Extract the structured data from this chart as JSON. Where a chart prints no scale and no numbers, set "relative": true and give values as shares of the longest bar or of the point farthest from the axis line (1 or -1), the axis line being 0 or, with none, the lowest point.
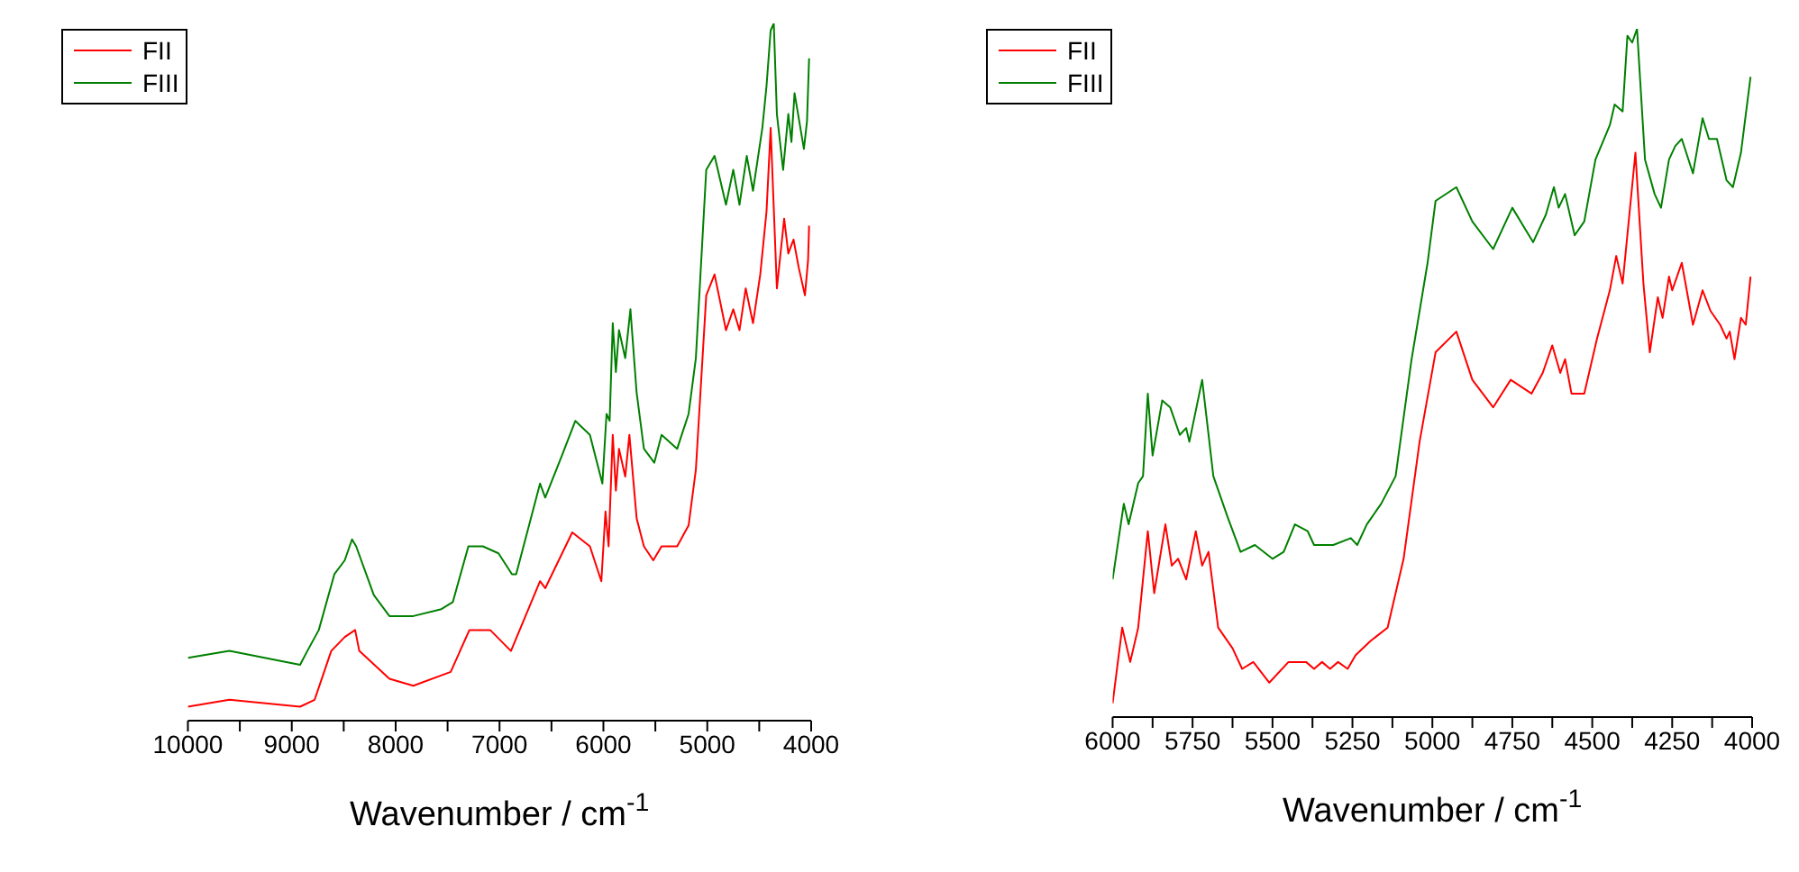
{
  "chart_data": [
    {
      "type": "line",
      "relative": true,
      "xlabel": "Wavenumber / cm$^{-1}$",
      "xlim": [
        10000,
        4000
      ],
      "xticks": [
        10000,
        {
          "value": 9500,
          "label": null
        },
        9000,
        {
          "value": 8500,
          "label": null
        },
        8000,
        {
          "value": 7500,
          "label": null
        },
        7000,
        {
          "value": 6500,
          "label": null
        },
        6000,
        {
          "value": 5500,
          "label": null
        },
        5000,
        {
          "value": 4500,
          "label": null
        },
        4000
      ],
      "legend": "top left",
      "grid": false,
      "marker": "none",
      "line_style": "solid",
      "series": [
        {
          "name": "FII",
          "color": "#ff0000",
          "x": [
            10000,
            9600,
            8920,
            8780,
            8620,
            8490,
            8390,
            8350,
            8060,
            7830,
            7470,
            7290,
            7090,
            6890,
            6610,
            6560,
            6300,
            6130,
            6020,
            5980,
            5950,
            5910,
            5880,
            5850,
            5790,
            5750,
            5680,
            5610,
            5520,
            5440,
            5290,
            5180,
            5110,
            5010,
            4930,
            4820,
            4750,
            4690,
            4630,
            4560,
            4490,
            4430,
            4390,
            4330,
            4260,
            4220,
            4170,
            4120,
            4060,
            4030,
            4020
          ],
          "values": [
            0.02,
            0.03,
            0.02,
            0.03,
            0.1,
            0.12,
            0.13,
            0.1,
            0.06,
            0.05,
            0.07,
            0.13,
            0.13,
            0.1,
            0.2,
            0.19,
            0.27,
            0.25,
            0.2,
            0.3,
            0.25,
            0.41,
            0.33,
            0.39,
            0.35,
            0.41,
            0.29,
            0.25,
            0.23,
            0.25,
            0.25,
            0.28,
            0.36,
            0.61,
            0.64,
            0.56,
            0.59,
            0.56,
            0.62,
            0.57,
            0.64,
            0.73,
            0.85,
            0.62,
            0.72,
            0.67,
            0.69,
            0.65,
            0.61,
            0.66,
            0.71
          ]
        },
        {
          "name": "FIII",
          "color": "#008000",
          "x": [
            10000,
            9600,
            8920,
            8850,
            8740,
            8590,
            8490,
            8420,
            8380,
            8210,
            8060,
            7830,
            7560,
            7450,
            7300,
            7160,
            7010,
            6880,
            6840,
            6610,
            6560,
            6400,
            6270,
            6130,
            6010,
            5970,
            5940,
            5910,
            5880,
            5850,
            5790,
            5740,
            5680,
            5610,
            5510,
            5440,
            5290,
            5180,
            5110,
            5010,
            4930,
            4820,
            4750,
            4690,
            4620,
            4560,
            4470,
            4430,
            4390,
            4360,
            4330,
            4270,
            4220,
            4190,
            4160,
            4070,
            4040,
            4020
          ],
          "values": [
            0.09,
            0.1,
            0.08,
            0.1,
            0.13,
            0.21,
            0.23,
            0.26,
            0.25,
            0.18,
            0.15,
            0.15,
            0.16,
            0.17,
            0.25,
            0.25,
            0.24,
            0.21,
            0.21,
            0.34,
            0.32,
            0.38,
            0.43,
            0.41,
            0.34,
            0.44,
            0.43,
            0.57,
            0.5,
            0.56,
            0.52,
            0.59,
            0.47,
            0.39,
            0.37,
            0.41,
            0.39,
            0.44,
            0.52,
            0.79,
            0.81,
            0.74,
            0.79,
            0.74,
            0.81,
            0.76,
            0.85,
            0.91,
            0.99,
            1,
            0.87,
            0.79,
            0.87,
            0.83,
            0.9,
            0.82,
            0.86,
            0.95
          ]
        }
      ]
    },
    {
      "type": "line",
      "relative": true,
      "xlabel": "Wavenumber / cm$^{-1}$",
      "xlim": [
        6000,
        4000
      ],
      "xticks": [
        6000,
        {
          "value": 5875,
          "label": null
        },
        5750,
        {
          "value": 5625,
          "label": null
        },
        5500,
        {
          "value": 5375,
          "label": null
        },
        5250,
        {
          "value": 5125,
          "label": null
        },
        5000,
        {
          "value": 4875,
          "label": null
        },
        4750,
        {
          "value": 4625,
          "label": null
        },
        4500,
        {
          "value": 4375,
          "label": null
        },
        4250,
        {
          "value": 4125,
          "label": null
        },
        4000
      ],
      "legend": "top left",
      "grid": false,
      "marker": "none",
      "line_style": "solid",
      "series": [
        {
          "name": "FII",
          "color": "#ff0000",
          "x": [
            6000,
            5970,
            5945,
            5920,
            5890,
            5870,
            5835,
            5815,
            5795,
            5770,
            5740,
            5720,
            5700,
            5670,
            5625,
            5595,
            5560,
            5510,
            5450,
            5395,
            5370,
            5345,
            5320,
            5295,
            5265,
            5240,
            5195,
            5140,
            5090,
            5040,
            4990,
            4925,
            4875,
            4810,
            4755,
            4690,
            4655,
            4625,
            4600,
            4585,
            4565,
            4525,
            4485,
            4445,
            4425,
            4405,
            4365,
            4340,
            4320,
            4295,
            4280,
            4260,
            4250,
            4220,
            4185,
            4155,
            4130,
            4100,
            4080,
            4070,
            4055,
            4035,
            4020,
            4005
          ],
          "values": [
            0.02,
            0.13,
            0.08,
            0.13,
            0.27,
            0.18,
            0.28,
            0.22,
            0.23,
            0.2,
            0.27,
            0.22,
            0.24,
            0.13,
            0.1,
            0.07,
            0.08,
            0.05,
            0.08,
            0.08,
            0.07,
            0.08,
            0.07,
            0.08,
            0.07,
            0.09,
            0.11,
            0.13,
            0.23,
            0.4,
            0.53,
            0.56,
            0.49,
            0.45,
            0.49,
            0.47,
            0.5,
            0.54,
            0.5,
            0.52,
            0.47,
            0.47,
            0.55,
            0.62,
            0.67,
            0.63,
            0.82,
            0.63,
            0.53,
            0.61,
            0.58,
            0.64,
            0.62,
            0.66,
            0.57,
            0.62,
            0.59,
            0.57,
            0.55,
            0.56,
            0.52,
            0.58,
            0.57,
            0.64
          ]
        },
        {
          "name": "FIII",
          "color": "#008000",
          "x": [
            6000,
            5965,
            5950,
            5920,
            5905,
            5890,
            5875,
            5845,
            5820,
            5790,
            5770,
            5760,
            5720,
            5685,
            5640,
            5600,
            5555,
            5500,
            5465,
            5430,
            5390,
            5370,
            5310,
            5255,
            5235,
            5205,
            5160,
            5115,
            5065,
            5015,
            4990,
            4925,
            4875,
            4810,
            4750,
            4685,
            4645,
            4620,
            4605,
            4585,
            4555,
            4525,
            4490,
            4445,
            4430,
            4405,
            4390,
            4375,
            4360,
            4335,
            4305,
            4285,
            4260,
            4240,
            4220,
            4185,
            4155,
            4135,
            4110,
            4080,
            4060,
            4035,
            4005
          ],
          "values": [
            0.2,
            0.31,
            0.28,
            0.34,
            0.35,
            0.47,
            0.38,
            0.46,
            0.45,
            0.41,
            0.42,
            0.4,
            0.49,
            0.35,
            0.29,
            0.24,
            0.25,
            0.23,
            0.24,
            0.28,
            0.27,
            0.25,
            0.25,
            0.26,
            0.25,
            0.28,
            0.31,
            0.35,
            0.52,
            0.66,
            0.75,
            0.77,
            0.72,
            0.68,
            0.74,
            0.69,
            0.73,
            0.77,
            0.74,
            0.76,
            0.7,
            0.72,
            0.81,
            0.86,
            0.89,
            0.88,
            0.99,
            0.98,
            1,
            0.81,
            0.76,
            0.74,
            0.81,
            0.83,
            0.84,
            0.79,
            0.87,
            0.84,
            0.84,
            0.78,
            0.77,
            0.82,
            0.93
          ]
        }
      ]
    }
  ]
}
